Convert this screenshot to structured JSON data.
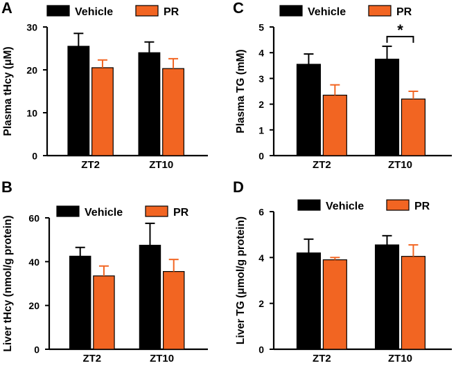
{
  "figure": {
    "series_colors": {
      "Vehicle": "#000000",
      "PR": "#f26522"
    }
  },
  "chart_data": [
    {
      "panel": "A",
      "type": "bar",
      "title": "",
      "xlabel": "",
      "ylabel": "Plasma tHcy (μM)",
      "categories": [
        "ZT2",
        "ZT10"
      ],
      "series": [
        {
          "name": "Vehicle",
          "values": [
            25.5,
            24.0
          ],
          "errors": [
            3.0,
            2.5
          ]
        },
        {
          "name": "PR",
          "values": [
            20.5,
            20.3
          ],
          "errors": [
            1.8,
            2.3
          ]
        }
      ],
      "ylim": [
        0,
        30
      ],
      "yticks": [
        "0",
        "10",
        "20",
        "30"
      ],
      "legend": "top",
      "grid": false,
      "significance": []
    },
    {
      "panel": "B",
      "type": "bar",
      "title": "",
      "xlabel": "",
      "ylabel": "Liver tHcy (nmol/g protein)",
      "categories": [
        "ZT2",
        "ZT10"
      ],
      "series": [
        {
          "name": "Vehicle",
          "values": [
            42.5,
            47.5
          ],
          "errors": [
            4.0,
            10.0
          ]
        },
        {
          "name": "PR",
          "values": [
            33.5,
            35.5
          ],
          "errors": [
            4.5,
            5.5
          ]
        }
      ],
      "ylim": [
        0,
        60
      ],
      "yticks": [
        "0",
        "20",
        "40",
        "60"
      ],
      "legend": "top",
      "grid": false,
      "significance": []
    },
    {
      "panel": "C",
      "type": "bar",
      "title": "",
      "xlabel": "",
      "ylabel": "Plasma TG (mM)",
      "categories": [
        "ZT2",
        "ZT10"
      ],
      "series": [
        {
          "name": "Vehicle",
          "values": [
            3.55,
            3.75
          ],
          "errors": [
            0.4,
            0.5
          ]
        },
        {
          "name": "PR",
          "values": [
            2.35,
            2.2
          ],
          "errors": [
            0.4,
            0.3
          ]
        }
      ],
      "ylim": [
        0,
        5
      ],
      "yticks": [
        "0",
        "1",
        "2",
        "3",
        "4",
        "5"
      ],
      "legend": "top",
      "grid": false,
      "significance": [
        {
          "category": "ZT10",
          "label": "*"
        }
      ]
    },
    {
      "panel": "D",
      "type": "bar",
      "title": "",
      "xlabel": "",
      "ylabel": "Liver TG (μmol/g protein)",
      "categories": [
        "ZT2",
        "ZT10"
      ],
      "series": [
        {
          "name": "Vehicle",
          "values": [
            4.2,
            4.55
          ],
          "errors": [
            0.6,
            0.4
          ]
        },
        {
          "name": "PR",
          "values": [
            3.9,
            4.05
          ],
          "errors": [
            0.1,
            0.5
          ]
        }
      ],
      "ylim": [
        0,
        6
      ],
      "yticks": [
        "0",
        "2",
        "4",
        "6"
      ],
      "legend": "top",
      "grid": false,
      "significance": []
    }
  ]
}
